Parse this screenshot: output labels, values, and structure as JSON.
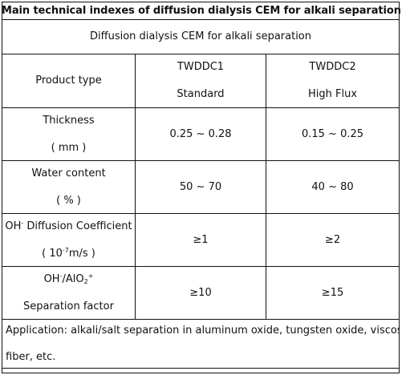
{
  "title": "Main technical indexes of diffusion dialysis CEM for alkali separation",
  "subtitle": "Diffusion dialysis CEM for alkali separation",
  "header": {
    "label": "Product type",
    "products": [
      {
        "model": "TWDDC1",
        "grade": "Standard"
      },
      {
        "model": "TWDDC2",
        "grade": "High Flux"
      }
    ]
  },
  "rows": {
    "thickness": {
      "name": "Thickness",
      "unit": "( mm )",
      "values": [
        "0.25 ~ 0.28",
        "0.15 ~ 0.25"
      ]
    },
    "water": {
      "name": "Water content",
      "unit": "( % )",
      "values": [
        "50 ~ 70",
        "40 ~ 80"
      ]
    },
    "oh": {
      "name_a": "OH",
      "name_a_sup": "-",
      "name_b": " Diffusion Coefficient",
      "unit_a": "( 10",
      "unit_sup": "-7",
      "unit_b": "m/s )",
      "values": [
        "≥1",
        "≥2"
      ]
    },
    "sep": {
      "name_a": "OH",
      "name_a_sup": "-",
      "name_b": "/AlO",
      "name_sub": "2",
      "name_sup": "+",
      "name2": "Separation factor",
      "values": [
        "≥10",
        "≥15"
      ]
    }
  },
  "application": {
    "line1": "Application: alkali/salt separation in aluminum oxide, tungsten oxide, viscose",
    "line2": "fiber, etc."
  }
}
